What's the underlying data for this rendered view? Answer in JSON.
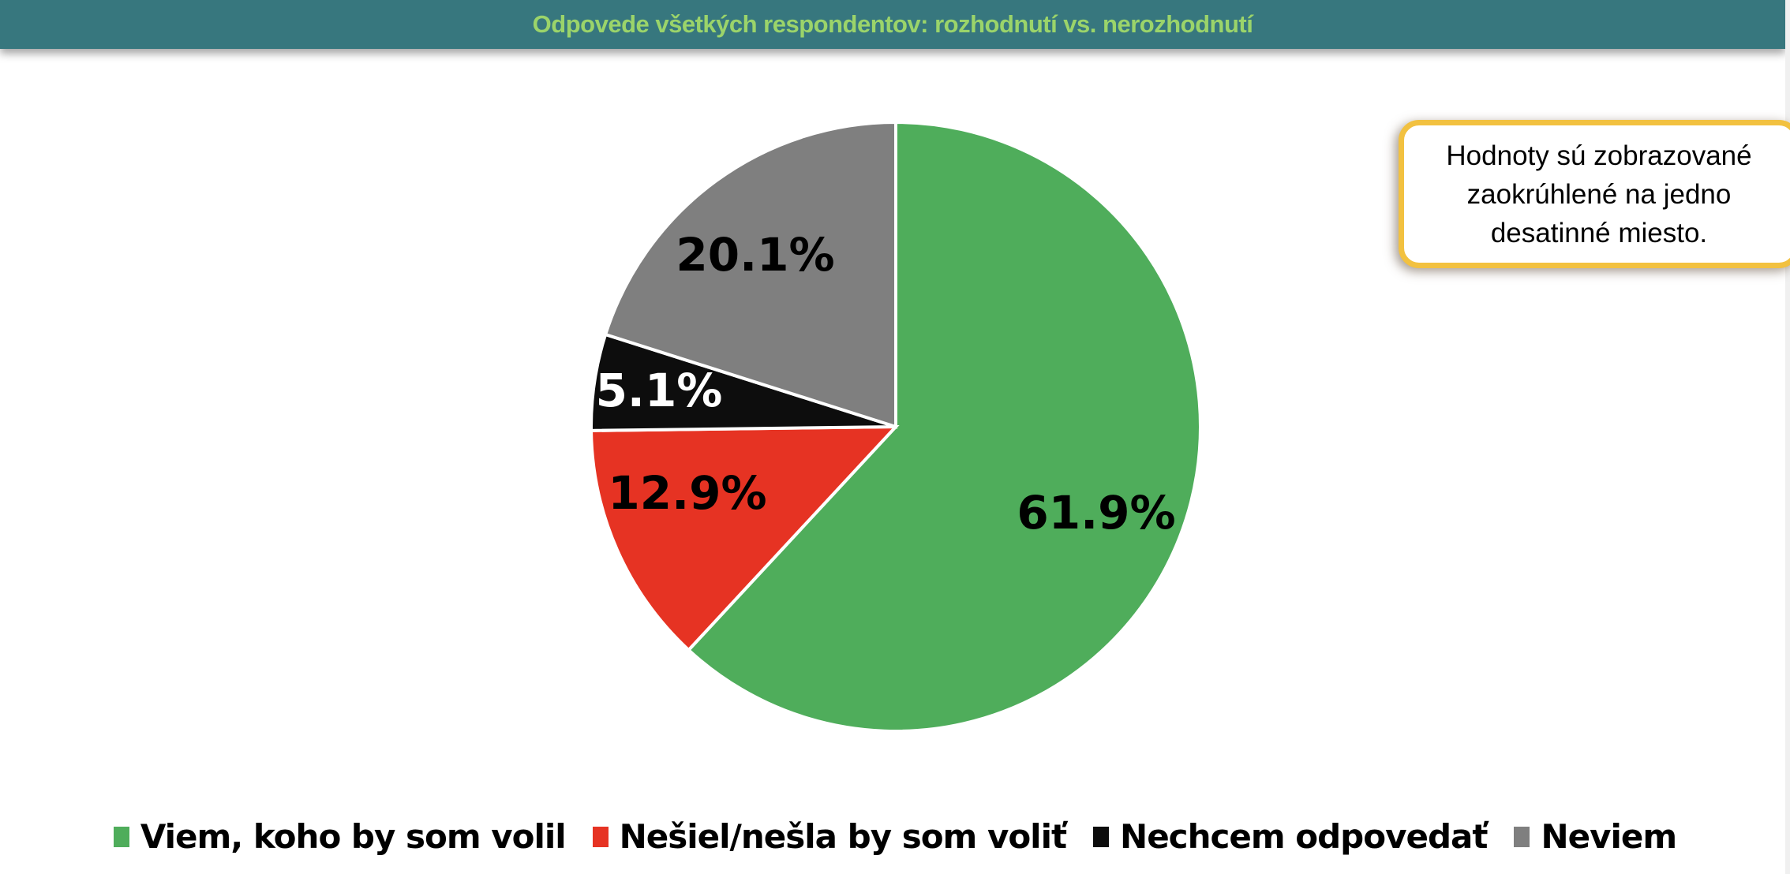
{
  "chart_data": {
    "type": "pie",
    "title": "Odpovede všetkých respondentov: rozhodnutí vs. nerozhodnutí",
    "slices": [
      {
        "name": "Viem, koho by som volil",
        "value": 61.9,
        "label": "61.9%",
        "color": "#4fad5b",
        "label_color": "#000000"
      },
      {
        "name": "Nešiel/nešla by som voliť",
        "value": 12.9,
        "label": "12.9%",
        "color": "#e63323",
        "label_color": "#000000"
      },
      {
        "name": "Nechcem odpovedať",
        "value": 5.1,
        "label": "5.1%",
        "color": "#0d0d0d",
        "label_color": "#ffffff"
      },
      {
        "name": "Neviem",
        "value": 20.1,
        "label": "20.1%",
        "color": "#7f7f7f",
        "label_color": "#000000"
      }
    ],
    "start_angle": "top, clockwise",
    "legend": "bottom"
  },
  "note": "Hodnoty sú zobrazované zaokrúhlené na jedno desatinné miesto.",
  "colors": {
    "title_bar": "#37777e",
    "title_text": "#9bd46a",
    "note_border": "#f2c140"
  }
}
